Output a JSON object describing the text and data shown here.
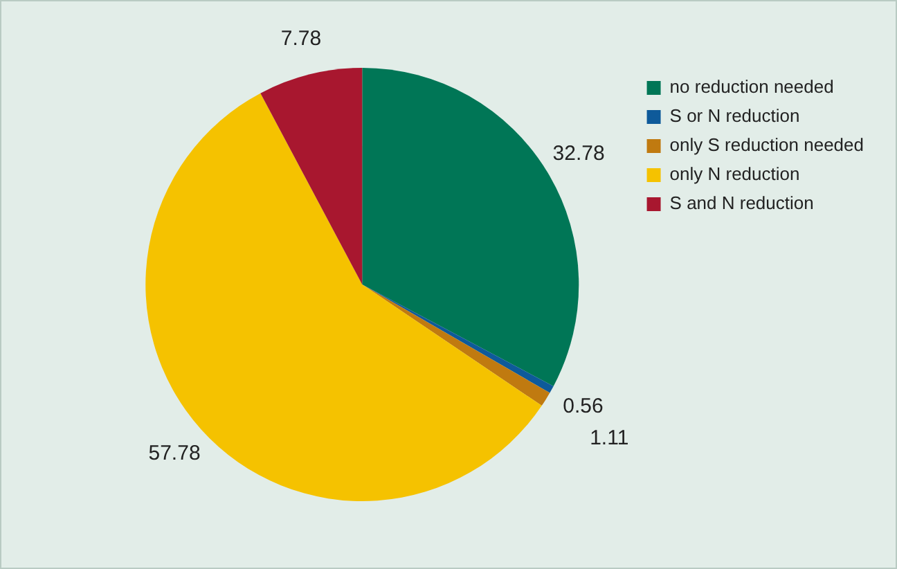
{
  "chart_data": {
    "type": "pie",
    "categories": [
      "no reduction needed",
      "S or N reduction",
      "only S reduction needed",
      "only N reduction",
      "S and N reduction"
    ],
    "values": [
      32.78,
      0.56,
      1.11,
      57.78,
      7.78
    ],
    "colors": [
      "#007656",
      "#0e5a9a",
      "#c07a10",
      "#f5c200",
      "#a8172f"
    ],
    "data_labels": true,
    "legend": "top right"
  }
}
